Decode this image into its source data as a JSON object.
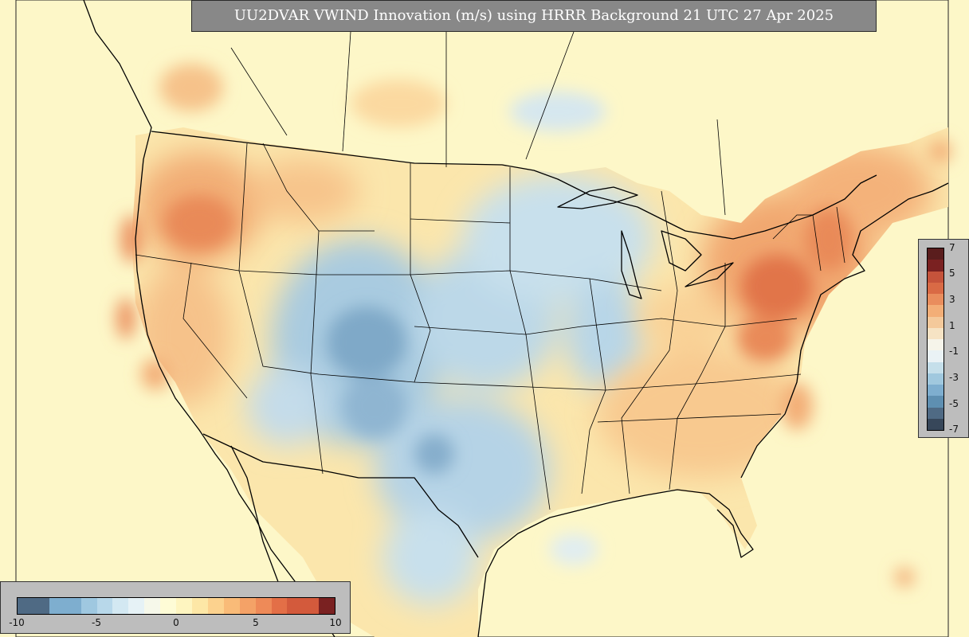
{
  "title": "UU2DVAR VWIND Innovation (m/s) using HRRR Background 21 UTC 27 Apr 2025",
  "colors": {
    "ocean": "#fdf7c8",
    "positive_light": "#fbd58f",
    "positive_mid": "#f4a86b",
    "positive_strong": "#e07048",
    "negative_light": "#cfe3ee",
    "negative_mid": "#9cc3dc",
    "negative_strong": "#5d88aa",
    "border_lines": "#000000"
  },
  "colorbar_horizontal": {
    "tick_labels": [
      "-10",
      "-5",
      "0",
      "5",
      "10"
    ],
    "swatches": [
      "#4f6a84",
      "#4f6a84",
      "#7eaecf",
      "#7eaecf",
      "#9fc8e0",
      "#b8d8ea",
      "#d3e8f2",
      "#e6f2f6",
      "#f6f8ea",
      "#fefcd6",
      "#fef5c0",
      "#fde7a6",
      "#fcd28e",
      "#f9bb78",
      "#f4a267",
      "#ee8a58",
      "#e36f47",
      "#d35a3c",
      "#d35a3c",
      "#7a2121"
    ]
  },
  "colorbar_vertical": {
    "tick_labels": [
      "7",
      "5",
      "3",
      "1",
      "-1",
      "-3",
      "-5",
      "-7"
    ],
    "swatches": [
      "#5a1d1d",
      "#7a2121",
      "#c5533b",
      "#d96a45",
      "#e98d5d",
      "#f3ae77",
      "#f4c99b",
      "#f6e3c4",
      "#f6f4ea",
      "#eaf2f5",
      "#c5dfea",
      "#a0c8de",
      "#7eaecf",
      "#5e8fb1",
      "#4f6a84",
      "#37475a"
    ]
  }
}
